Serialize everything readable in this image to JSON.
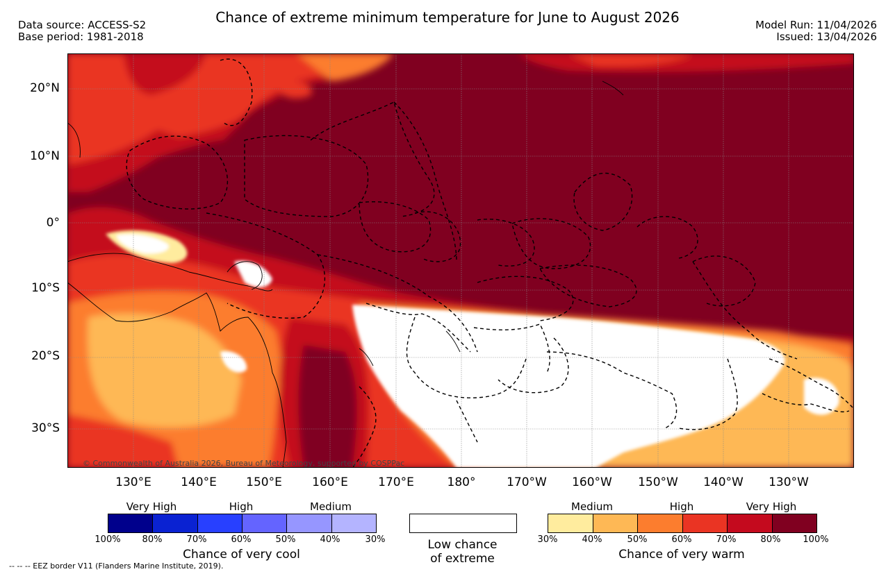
{
  "title": "Chance of extreme minimum temperature for June to August 2026",
  "header_left": [
    "Data source: ACCESS-S2",
    "Base period: 1981-2018"
  ],
  "header_right": [
    "Model Run: 11/04/2026",
    "Issued: 13/04/2026"
  ],
  "lat_labels": [
    "20°N",
    "10°N",
    "0°",
    "10°S",
    "20°S",
    "30°S"
  ],
  "lon_labels": [
    "130°E",
    "140°E",
    "150°E",
    "160°E",
    "170°E",
    "180°",
    "170°W",
    "160°W",
    "150°W",
    "140°W",
    "130°W"
  ],
  "map_copyright": "© Commonwealth of Australia 2026, Bureau of Meteorology, supported by COSPPac",
  "cool_legend": {
    "categories": [
      "Very High",
      "High",
      "Medium"
    ],
    "ticks": [
      "100%",
      "80%",
      "70%",
      "60%",
      "50%",
      "40%",
      "30%"
    ],
    "colors": [
      "#00008c",
      "#0a22d2",
      "#2840ff",
      "#6464ff",
      "#9696ff",
      "#b4b4ff"
    ],
    "title": "Chance of very cool"
  },
  "low_legend": {
    "line1": "Low chance",
    "line2": "of extreme"
  },
  "warm_legend": {
    "categories": [
      "Medium",
      "High",
      "Very High"
    ],
    "ticks": [
      "30%",
      "40%",
      "50%",
      "60%",
      "70%",
      "80%",
      "100%"
    ],
    "colors": [
      "#ffec9e",
      "#feb855",
      "#fc7d2e",
      "#ea3423",
      "#c40a1e",
      "#800020"
    ],
    "title": "Chance of very warm"
  },
  "footer_note": "-- -- -- EEZ border V11 (Flanders Marine Institute, 2019)."
}
